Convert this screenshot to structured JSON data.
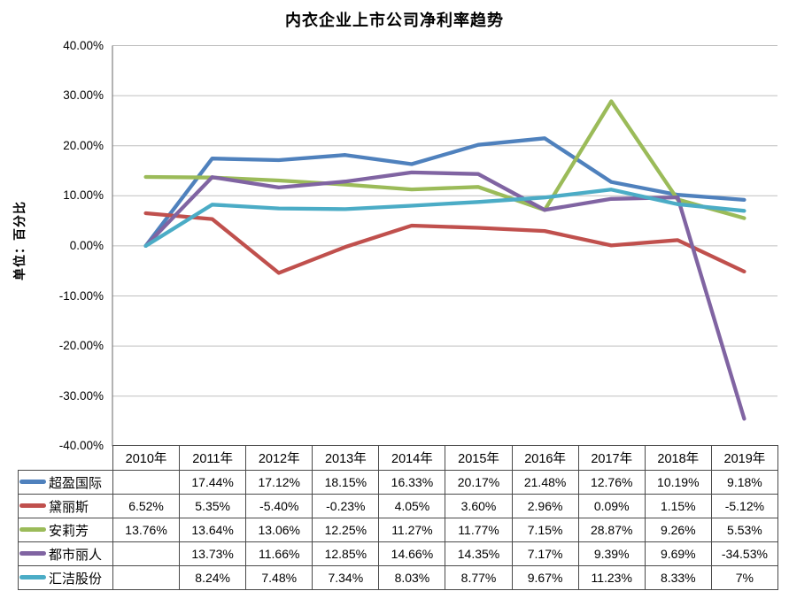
{
  "chart": {
    "title": "内衣企业上市公司净利率趋势",
    "y_axis_title": "单位：百分比"
  },
  "chart_data": {
    "type": "line",
    "title": "内衣企业上市公司净利率趋势",
    "ylabel": "单位：百分比",
    "xlabel": "",
    "ylim": [
      -40,
      40
    ],
    "y_tick_labels": [
      "40.00%",
      "30.00%",
      "20.00%",
      "10.00%",
      "0.00%",
      "-10.00%",
      "-20.00%",
      "-30.00%",
      "-40.00%"
    ],
    "grid": true,
    "legend_position": "data-table-left",
    "missing_values_plotted_as": 0,
    "categories": [
      "2010年",
      "2011年",
      "2012年",
      "2013年",
      "2014年",
      "2015年",
      "2016年",
      "2017年",
      "2018年",
      "2019年"
    ],
    "series": [
      {
        "name": "超盈国际",
        "color": "#4F81BD",
        "values": [
          null,
          17.44,
          17.12,
          18.15,
          16.33,
          20.17,
          21.48,
          12.76,
          10.19,
          9.18
        ],
        "display": [
          "",
          "17.44%",
          "17.12%",
          "18.15%",
          "16.33%",
          "20.17%",
          "21.48%",
          "12.76%",
          "10.19%",
          "9.18%"
        ]
      },
      {
        "name": "黛丽斯",
        "color": "#C0504D",
        "values": [
          6.52,
          5.35,
          -5.4,
          -0.23,
          4.05,
          3.6,
          2.96,
          0.09,
          1.15,
          -5.12
        ],
        "display": [
          "6.52%",
          "5.35%",
          "-5.40%",
          "-0.23%",
          "4.05%",
          "3.60%",
          "2.96%",
          "0.09%",
          "1.15%",
          "-5.12%"
        ]
      },
      {
        "name": "安莉芳",
        "color": "#9BBB59",
        "values": [
          13.76,
          13.64,
          13.06,
          12.25,
          11.27,
          11.77,
          7.15,
          28.87,
          9.26,
          5.53
        ],
        "display": [
          "13.76%",
          "13.64%",
          "13.06%",
          "12.25%",
          "11.27%",
          "11.77%",
          "7.15%",
          "28.87%",
          "9.26%",
          "5.53%"
        ]
      },
      {
        "name": "都市丽人",
        "color": "#8064A2",
        "values": [
          null,
          13.73,
          11.66,
          12.85,
          14.66,
          14.35,
          7.17,
          9.39,
          9.69,
          -34.53
        ],
        "display": [
          "",
          "13.73%",
          "11.66%",
          "12.85%",
          "14.66%",
          "14.35%",
          "7.17%",
          "9.39%",
          "9.69%",
          "-34.53%"
        ]
      },
      {
        "name": "汇洁股份",
        "color": "#4BACC6",
        "values": [
          null,
          8.24,
          7.48,
          7.34,
          8.03,
          8.77,
          9.67,
          11.23,
          8.33,
          7
        ],
        "display": [
          "",
          "8.24%",
          "7.48%",
          "7.34%",
          "8.03%",
          "8.77%",
          "9.67%",
          "11.23%",
          "8.33%",
          "7%"
        ]
      }
    ],
    "colors": {
      "gridline": "#BFBFBF",
      "axis": "#808080",
      "table_border": "#4a4a4a",
      "text": "#000000"
    }
  }
}
